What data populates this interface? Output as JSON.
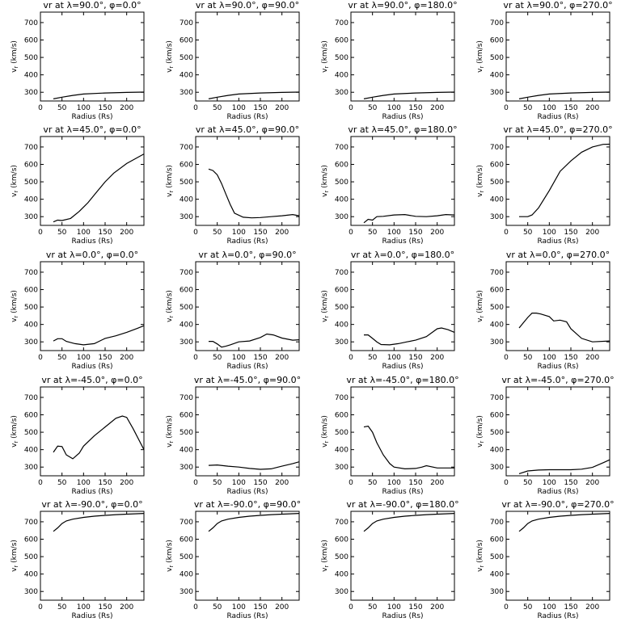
{
  "shared": {
    "xlabel": "Radius (Rs)",
    "ylabel": "v<sub>r</sub> (km/s)",
    "xticks": [
      0,
      50,
      100,
      150,
      200
    ],
    "yticks": [
      300,
      400,
      500,
      600,
      700
    ],
    "xlim": [
      0,
      240
    ],
    "ylim": [
      250,
      760
    ]
  },
  "chart_data": [
    {
      "type": "line",
      "title": "vr at λ=90.0°, φ=0.0°",
      "x": [
        30,
        50,
        75,
        100,
        150,
        200,
        240
      ],
      "values": [
        262,
        272,
        282,
        290,
        296,
        299,
        301
      ]
    },
    {
      "type": "line",
      "title": "vr at λ=90.0°, φ=90.0°",
      "x": [
        30,
        50,
        75,
        100,
        150,
        200,
        240
      ],
      "values": [
        262,
        272,
        282,
        290,
        296,
        299,
        301
      ]
    },
    {
      "type": "line",
      "title": "vr at λ=90.0°, φ=180.0°",
      "x": [
        30,
        50,
        75,
        100,
        150,
        200,
        240
      ],
      "values": [
        262,
        272,
        282,
        290,
        296,
        299,
        301
      ]
    },
    {
      "type": "line",
      "title": "vr at λ=90.0°, φ=270.0°",
      "x": [
        30,
        50,
        75,
        100,
        150,
        200,
        240
      ],
      "values": [
        262,
        272,
        282,
        290,
        296,
        299,
        301
      ]
    },
    {
      "type": "line",
      "title": "vr at λ=45.0°, φ=0.0°",
      "x": [
        30,
        40,
        50,
        70,
        90,
        110,
        130,
        150,
        170,
        200,
        240
      ],
      "values": [
        270,
        280,
        278,
        290,
        330,
        380,
        440,
        500,
        550,
        605,
        660
      ]
    },
    {
      "type": "line",
      "title": "vr at λ=45.0°, φ=90.0°",
      "x": [
        30,
        40,
        50,
        60,
        70,
        80,
        90,
        110,
        130,
        150,
        175,
        200,
        225,
        240
      ],
      "values": [
        573,
        565,
        540,
        490,
        430,
        370,
        320,
        297,
        293,
        295,
        300,
        305,
        312,
        305
      ]
    },
    {
      "type": "line",
      "title": "vr at λ=45.0°, φ=180.0°",
      "x": [
        30,
        40,
        50,
        60,
        75,
        100,
        125,
        150,
        175,
        200,
        220,
        240
      ],
      "values": [
        265,
        285,
        280,
        300,
        302,
        310,
        312,
        302,
        300,
        305,
        312,
        310
      ]
    },
    {
      "type": "line",
      "title": "vr at λ=45.0°, φ=270.0°",
      "x": [
        30,
        50,
        60,
        75,
        100,
        125,
        150,
        175,
        200,
        225,
        240
      ],
      "values": [
        300,
        300,
        310,
        350,
        450,
        560,
        620,
        670,
        700,
        715,
        716
      ]
    },
    {
      "type": "line",
      "title": "vr at λ=0.0°, φ=0.0°",
      "x": [
        30,
        40,
        50,
        60,
        80,
        100,
        125,
        150,
        175,
        200,
        225,
        240
      ],
      "values": [
        305,
        318,
        318,
        303,
        290,
        283,
        290,
        320,
        335,
        355,
        378,
        393
      ]
    },
    {
      "type": "line",
      "title": "vr at λ=0.0°, φ=90.0°",
      "x": [
        30,
        40,
        50,
        60,
        70,
        80,
        100,
        125,
        150,
        165,
        180,
        200,
        225,
        240
      ],
      "values": [
        303,
        303,
        288,
        270,
        275,
        283,
        300,
        305,
        325,
        345,
        340,
        322,
        310,
        312
      ]
    },
    {
      "type": "line",
      "title": "vr at λ=0.0°, φ=180.0°",
      "x": [
        30,
        40,
        50,
        60,
        70,
        90,
        110,
        130,
        150,
        175,
        200,
        210,
        225,
        240
      ],
      "values": [
        340,
        340,
        320,
        300,
        285,
        283,
        290,
        300,
        310,
        330,
        375,
        380,
        370,
        355
      ]
    },
    {
      "type": "line",
      "title": "vr at λ=0.0°, φ=270.0°",
      "x": [
        30,
        40,
        50,
        60,
        70,
        80,
        100,
        110,
        125,
        140,
        150,
        175,
        200,
        240
      ],
      "values": [
        380,
        410,
        440,
        465,
        465,
        460,
        445,
        420,
        425,
        415,
        375,
        320,
        300,
        305
      ]
    },
    {
      "type": "line",
      "title": "vr at λ=-45.0°, φ=0.0°",
      "x": [
        30,
        40,
        50,
        60,
        75,
        90,
        100,
        125,
        150,
        175,
        190,
        200,
        215,
        240
      ],
      "values": [
        385,
        420,
        418,
        370,
        348,
        380,
        420,
        480,
        530,
        580,
        593,
        585,
        520,
        400
      ]
    },
    {
      "type": "line",
      "title": "vr at λ=-45.0°, φ=90.0°",
      "x": [
        30,
        50,
        75,
        100,
        125,
        150,
        175,
        200,
        225,
        240
      ],
      "values": [
        310,
        312,
        305,
        300,
        292,
        287,
        290,
        305,
        320,
        330
      ]
    },
    {
      "type": "line",
      "title": "vr at λ=-45.0°, φ=180.0°",
      "x": [
        30,
        40,
        50,
        60,
        75,
        90,
        100,
        125,
        150,
        165,
        175,
        200,
        225,
        240
      ],
      "values": [
        530,
        535,
        500,
        440,
        370,
        320,
        300,
        290,
        292,
        300,
        308,
        295,
        295,
        295
      ]
    },
    {
      "type": "line",
      "title": "vr at λ=-45.0°, φ=270.0°",
      "x": [
        30,
        50,
        75,
        100,
        125,
        150,
        175,
        200,
        225,
        240
      ],
      "values": [
        262,
        278,
        283,
        285,
        285,
        285,
        288,
        298,
        325,
        342
      ]
    },
    {
      "type": "line",
      "title": "vr at λ=-90.0°, φ=0.0°",
      "x": [
        30,
        40,
        50,
        60,
        75,
        100,
        125,
        150,
        175,
        200,
        240
      ],
      "values": [
        645,
        665,
        690,
        705,
        715,
        725,
        732,
        737,
        741,
        744,
        748
      ]
    },
    {
      "type": "line",
      "title": "vr at λ=-90.0°, φ=90.0°",
      "x": [
        30,
        40,
        50,
        60,
        75,
        100,
        125,
        150,
        175,
        200,
        240
      ],
      "values": [
        645,
        665,
        690,
        705,
        715,
        725,
        732,
        737,
        741,
        744,
        748
      ]
    },
    {
      "type": "line",
      "title": "vr at λ=-90.0°, φ=180.0°",
      "x": [
        30,
        40,
        50,
        60,
        75,
        100,
        125,
        150,
        175,
        200,
        240
      ],
      "values": [
        645,
        665,
        690,
        705,
        715,
        725,
        732,
        737,
        741,
        744,
        748
      ]
    },
    {
      "type": "line",
      "title": "vr at λ=-90.0°, φ=270.0°",
      "x": [
        30,
        40,
        50,
        60,
        75,
        100,
        125,
        150,
        175,
        200,
        240
      ],
      "values": [
        645,
        665,
        690,
        705,
        715,
        725,
        732,
        737,
        741,
        744,
        748
      ]
    }
  ]
}
